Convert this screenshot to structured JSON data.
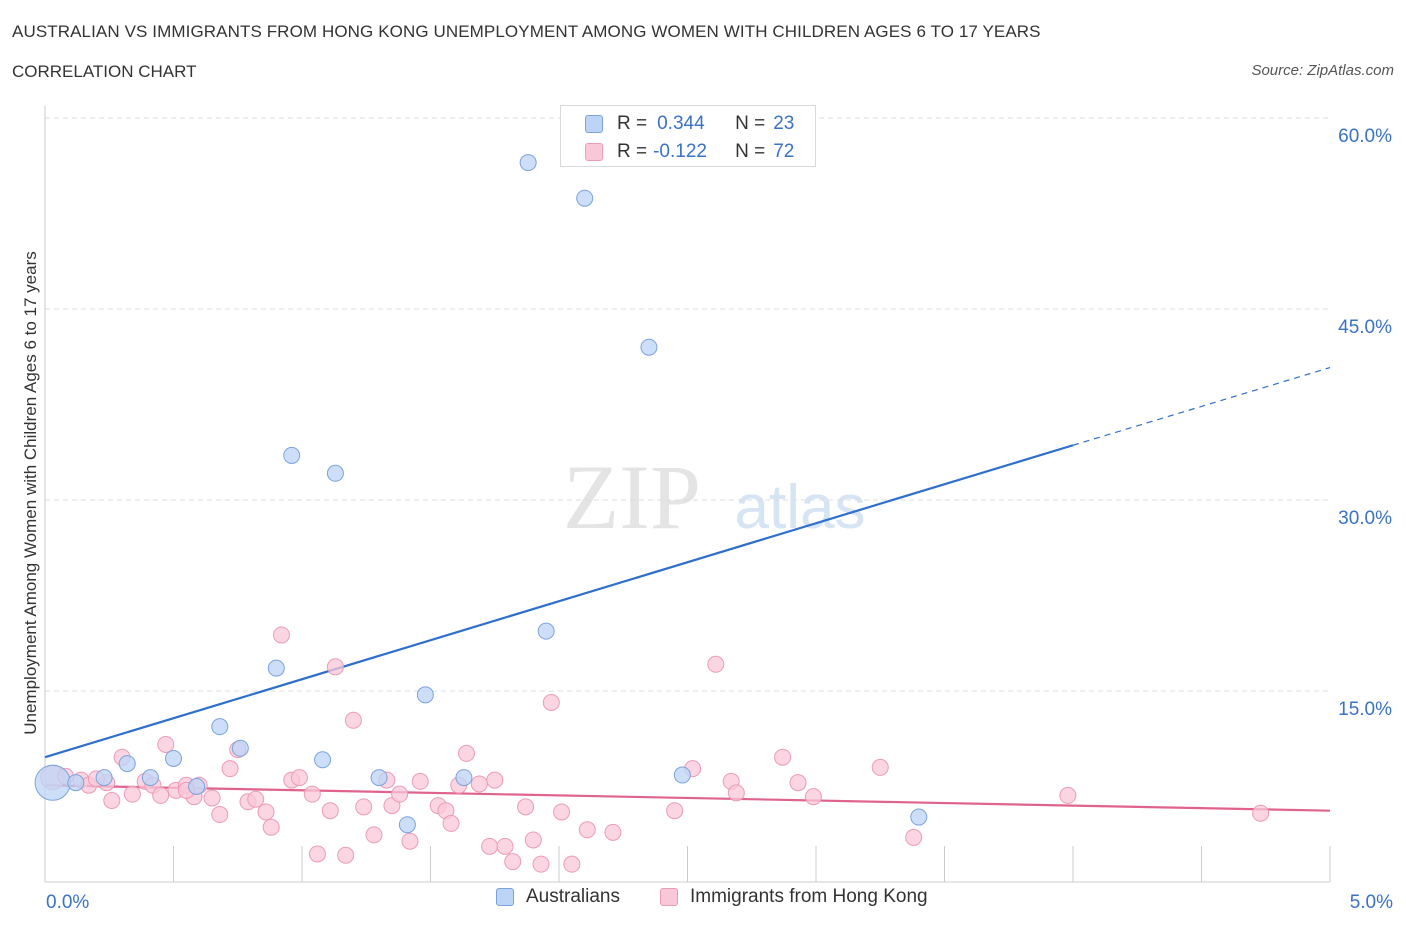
{
  "header": {
    "title": "AUSTRALIAN VS IMMIGRANTS FROM HONG KONG UNEMPLOYMENT AMONG WOMEN WITH CHILDREN AGES 6 TO 17 YEARS",
    "subtitle": "CORRELATION CHART",
    "source": "Source: ZipAtlas.com"
  },
  "watermark": {
    "zip": "ZIP",
    "atlas": "atlas"
  },
  "colors": {
    "australians_fill": "#bcd4f5",
    "australians_stroke": "#7aa3dc",
    "australians_line": "#2f6fcc",
    "hongkong_fill": "#f9c8d8",
    "hongkong_stroke": "#ec9bb5",
    "hongkong_line": "#e0628f",
    "axis_label": "#3a72c4",
    "grid": "#dddddd"
  },
  "stats": {
    "australians": {
      "r_label": "R =",
      "r_value": "0.344",
      "n_label": "N =",
      "n_value": "23"
    },
    "hongkong": {
      "r_label": "R =",
      "r_value": "-0.122",
      "n_label": "N =",
      "n_value": "72"
    }
  },
  "legend": {
    "australians": "Australians",
    "hongkong": "Immigrants from Hong Kong"
  },
  "chart_data": {
    "type": "scatter",
    "title": "AUSTRALIAN VS IMMIGRANTS FROM HONG KONG UNEMPLOYMENT AMONG WOMEN WITH CHILDREN AGES 6 TO 17 YEARS",
    "xlabel": "",
    "ylabel": "Unemployment Among Women with Children Ages 6 to 17 years",
    "xlim": [
      0,
      5
    ],
    "ylim": [
      0,
      60
    ],
    "x_tick_labels": {
      "min": "0.0%",
      "max": "5.0%"
    },
    "y_ticks": [
      15,
      30,
      45,
      60
    ],
    "y_tick_labels": [
      "15.0%",
      "30.0%",
      "45.0%",
      "60.0%"
    ],
    "grid": "horizontal dashed",
    "series": [
      {
        "name": "Australians",
        "points": [
          {
            "x": 0.03,
            "y": 7.8,
            "s": 2.2
          },
          {
            "x": 0.12,
            "y": 7.8,
            "s": 1
          },
          {
            "x": 0.23,
            "y": 8.2,
            "s": 1
          },
          {
            "x": 0.32,
            "y": 9.3,
            "s": 1
          },
          {
            "x": 0.41,
            "y": 8.2,
            "s": 1
          },
          {
            "x": 0.5,
            "y": 9.7,
            "s": 1
          },
          {
            "x": 0.59,
            "y": 7.5,
            "s": 1
          },
          {
            "x": 0.68,
            "y": 12.2,
            "s": 1
          },
          {
            "x": 0.76,
            "y": 10.5,
            "s": 1
          },
          {
            "x": 0.9,
            "y": 16.8,
            "s": 1
          },
          {
            "x": 0.96,
            "y": 33.5,
            "s": 1
          },
          {
            "x": 1.08,
            "y": 9.6,
            "s": 1
          },
          {
            "x": 1.13,
            "y": 32.1,
            "s": 1
          },
          {
            "x": 1.3,
            "y": 8.2,
            "s": 1
          },
          {
            "x": 1.41,
            "y": 4.5,
            "s": 1
          },
          {
            "x": 1.48,
            "y": 14.7,
            "s": 1
          },
          {
            "x": 1.63,
            "y": 8.2,
            "s": 1
          },
          {
            "x": 1.88,
            "y": 56.5,
            "s": 1
          },
          {
            "x": 1.95,
            "y": 19.7,
            "s": 1
          },
          {
            "x": 2.1,
            "y": 53.7,
            "s": 1
          },
          {
            "x": 2.35,
            "y": 42.0,
            "s": 1
          },
          {
            "x": 2.48,
            "y": 8.4,
            "s": 1
          },
          {
            "x": 3.4,
            "y": 5.1,
            "s": 1
          }
        ],
        "trend": {
          "x0": 0,
          "y0": 9.8,
          "x1": 4.0,
          "y1": 34.3,
          "dashed_to_x": 5.0,
          "dashed_to_y": 40.4
        }
      },
      {
        "name": "Immigrants from Hong Kong",
        "points": [
          {
            "x": 0.03,
            "y": 8.2,
            "s": 1.5
          },
          {
            "x": 0.08,
            "y": 8.3,
            "s": 1
          },
          {
            "x": 0.14,
            "y": 8.0,
            "s": 1
          },
          {
            "x": 0.17,
            "y": 7.6,
            "s": 1
          },
          {
            "x": 0.24,
            "y": 7.8,
            "s": 1
          },
          {
            "x": 0.26,
            "y": 6.4,
            "s": 1
          },
          {
            "x": 0.3,
            "y": 9.8,
            "s": 1
          },
          {
            "x": 0.34,
            "y": 6.9,
            "s": 1
          },
          {
            "x": 0.39,
            "y": 7.9,
            "s": 1
          },
          {
            "x": 0.42,
            "y": 7.6,
            "s": 1
          },
          {
            "x": 0.45,
            "y": 6.8,
            "s": 1
          },
          {
            "x": 0.47,
            "y": 10.8,
            "s": 1
          },
          {
            "x": 0.51,
            "y": 7.2,
            "s": 1
          },
          {
            "x": 0.55,
            "y": 7.6,
            "s": 1
          },
          {
            "x": 0.58,
            "y": 6.7,
            "s": 1
          },
          {
            "x": 0.6,
            "y": 7.6,
            "s": 1
          },
          {
            "x": 0.65,
            "y": 6.6,
            "s": 1
          },
          {
            "x": 0.68,
            "y": 5.3,
            "s": 1
          },
          {
            "x": 0.72,
            "y": 8.9,
            "s": 1
          },
          {
            "x": 0.75,
            "y": 10.4,
            "s": 1
          },
          {
            "x": 0.79,
            "y": 6.3,
            "s": 1
          },
          {
            "x": 0.82,
            "y": 6.5,
            "s": 1
          },
          {
            "x": 0.86,
            "y": 5.5,
            "s": 1
          },
          {
            "x": 0.88,
            "y": 4.3,
            "s": 1
          },
          {
            "x": 0.92,
            "y": 19.4,
            "s": 1
          },
          {
            "x": 0.96,
            "y": 8.0,
            "s": 1
          },
          {
            "x": 0.99,
            "y": 8.2,
            "s": 1
          },
          {
            "x": 1.04,
            "y": 6.9,
            "s": 1
          },
          {
            "x": 1.06,
            "y": 2.2,
            "s": 1
          },
          {
            "x": 1.11,
            "y": 5.6,
            "s": 1
          },
          {
            "x": 1.13,
            "y": 16.9,
            "s": 1
          },
          {
            "x": 1.17,
            "y": 2.1,
            "s": 1
          },
          {
            "x": 1.2,
            "y": 12.7,
            "s": 1
          },
          {
            "x": 1.24,
            "y": 5.9,
            "s": 1
          },
          {
            "x": 1.28,
            "y": 3.7,
            "s": 1
          },
          {
            "x": 1.33,
            "y": 8.0,
            "s": 1
          },
          {
            "x": 1.35,
            "y": 6.0,
            "s": 1
          },
          {
            "x": 1.38,
            "y": 6.9,
            "s": 1
          },
          {
            "x": 1.42,
            "y": 3.2,
            "s": 1
          },
          {
            "x": 1.46,
            "y": 7.9,
            "s": 1
          },
          {
            "x": 1.53,
            "y": 6.0,
            "s": 1
          },
          {
            "x": 1.56,
            "y": 5.6,
            "s": 1
          },
          {
            "x": 1.58,
            "y": 4.6,
            "s": 1
          },
          {
            "x": 1.61,
            "y": 7.6,
            "s": 1
          },
          {
            "x": 1.64,
            "y": 10.1,
            "s": 1
          },
          {
            "x": 1.69,
            "y": 7.7,
            "s": 1
          },
          {
            "x": 1.73,
            "y": 2.8,
            "s": 1
          },
          {
            "x": 1.75,
            "y": 8.0,
            "s": 1
          },
          {
            "x": 1.79,
            "y": 2.8,
            "s": 1
          },
          {
            "x": 1.82,
            "y": 1.6,
            "s": 1
          },
          {
            "x": 1.87,
            "y": 5.9,
            "s": 1
          },
          {
            "x": 1.9,
            "y": 3.3,
            "s": 1
          },
          {
            "x": 1.93,
            "y": 1.4,
            "s": 1
          },
          {
            "x": 1.97,
            "y": 14.1,
            "s": 1
          },
          {
            "x": 2.01,
            "y": 5.5,
            "s": 1
          },
          {
            "x": 2.05,
            "y": 1.4,
            "s": 1
          },
          {
            "x": 2.11,
            "y": 4.1,
            "s": 1
          },
          {
            "x": 2.21,
            "y": 3.9,
            "s": 1
          },
          {
            "x": 2.45,
            "y": 5.6,
            "s": 1
          },
          {
            "x": 2.52,
            "y": 8.9,
            "s": 1
          },
          {
            "x": 2.61,
            "y": 17.1,
            "s": 1
          },
          {
            "x": 2.67,
            "y": 7.9,
            "s": 1
          },
          {
            "x": 2.69,
            "y": 7.0,
            "s": 1
          },
          {
            "x": 2.87,
            "y": 9.8,
            "s": 1
          },
          {
            "x": 2.93,
            "y": 7.8,
            "s": 1
          },
          {
            "x": 2.99,
            "y": 6.7,
            "s": 1
          },
          {
            "x": 3.25,
            "y": 9.0,
            "s": 1
          },
          {
            "x": 3.38,
            "y": 3.5,
            "s": 1
          },
          {
            "x": 3.98,
            "y": 6.8,
            "s": 1
          },
          {
            "x": 4.73,
            "y": 5.4,
            "s": 1
          },
          {
            "x": 0.2,
            "y": 8.1,
            "s": 1
          },
          {
            "x": 0.55,
            "y": 7.2,
            "s": 1
          }
        ],
        "trend": {
          "x0": 0,
          "y0": 7.6,
          "x1": 5.0,
          "y1": 5.6
        }
      }
    ]
  }
}
